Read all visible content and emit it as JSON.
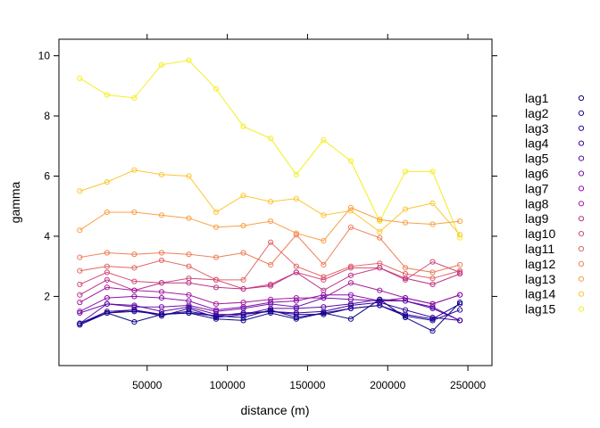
{
  "chart_data": {
    "type": "line",
    "xlabel": "distance (m)",
    "ylabel": "gamma",
    "xlim": [
      -5000,
      265000
    ],
    "ylim": [
      -0.3,
      10.55
    ],
    "xticks": [
      50000,
      100000,
      150000,
      200000,
      250000
    ],
    "yticks": [
      2,
      4,
      6,
      8,
      10
    ],
    "legend_position": "right",
    "x": [
      8000,
      25000,
      42000,
      59000,
      76000,
      93000,
      110000,
      127000,
      143000,
      160000,
      177000,
      195000,
      211000,
      228000,
      245000
    ],
    "series": [
      {
        "name": "lag1",
        "color": "#0d0887",
        "values": [
          1.05,
          1.45,
          1.15,
          1.4,
          1.45,
          1.25,
          1.2,
          1.45,
          1.25,
          1.45,
          1.25,
          1.9,
          1.3,
          0.85,
          1.8
        ]
      },
      {
        "name": "lag2",
        "color": "#1a0596",
        "values": [
          1.1,
          1.45,
          1.5,
          1.4,
          1.5,
          1.35,
          1.3,
          1.55,
          1.3,
          1.45,
          1.6,
          1.7,
          1.4,
          1.25,
          1.75
        ]
      },
      {
        "name": "lag3",
        "color": "#2a0593",
        "values": [
          1.1,
          1.45,
          1.55,
          1.35,
          1.6,
          1.3,
          1.4,
          1.5,
          1.4,
          1.4,
          1.6,
          1.7,
          1.35,
          1.2,
          1.55
        ]
      },
      {
        "name": "lag4",
        "color": "#3d049b",
        "values": [
          1.1,
          1.5,
          1.55,
          1.4,
          1.45,
          1.35,
          1.45,
          1.5,
          1.45,
          1.5,
          1.7,
          1.8,
          1.55,
          1.3,
          1.2
        ]
      },
      {
        "name": "lag5",
        "color": "#5a0ca5",
        "values": [
          1.1,
          1.75,
          1.7,
          1.5,
          1.65,
          1.4,
          1.4,
          1.6,
          1.6,
          1.65,
          1.75,
          1.9,
          1.85,
          1.6,
          1.2
        ]
      },
      {
        "name": "lag6",
        "color": "#7012ac",
        "values": [
          1.45,
          1.75,
          1.65,
          1.65,
          1.7,
          1.5,
          1.6,
          1.75,
          1.65,
          1.95,
          1.9,
          1.85,
          1.85,
          1.65,
          1.2
        ]
      },
      {
        "name": "lag7",
        "color": "#8b0fab",
        "values": [
          1.5,
          1.95,
          2.0,
          1.95,
          1.85,
          1.55,
          1.65,
          1.8,
          1.85,
          2.05,
          2.05,
          1.85,
          1.95,
          1.75,
          2.05
        ]
      },
      {
        "name": "lag8",
        "color": "#a51c9d",
        "values": [
          1.8,
          2.3,
          2.2,
          2.15,
          2.05,
          1.75,
          1.8,
          1.9,
          1.95,
          1.95,
          2.45,
          2.2,
          1.95,
          1.75,
          2.05
        ]
      },
      {
        "name": "lag9",
        "color": "#bd3489",
        "values": [
          2.05,
          2.55,
          2.2,
          2.45,
          2.45,
          2.3,
          2.25,
          2.35,
          2.8,
          2.2,
          2.7,
          2.95,
          2.6,
          2.4,
          2.75
        ]
      },
      {
        "name": "lag10",
        "color": "#d24b78",
        "values": [
          2.4,
          2.8,
          2.5,
          2.45,
          2.6,
          2.55,
          2.25,
          2.4,
          2.8,
          2.55,
          2.95,
          2.95,
          2.55,
          3.15,
          2.8
        ]
      },
      {
        "name": "lag11",
        "color": "#e26666",
        "values": [
          2.85,
          3.0,
          2.95,
          3.2,
          3.0,
          2.55,
          2.55,
          3.8,
          3.0,
          2.65,
          3.0,
          3.1,
          2.75,
          2.6,
          2.85
        ]
      },
      {
        "name": "lag12",
        "color": "#ee7f57",
        "values": [
          3.3,
          3.45,
          3.4,
          3.45,
          3.4,
          3.3,
          3.45,
          3.05,
          4.05,
          3.05,
          4.3,
          3.95,
          2.95,
          2.8,
          3.05
        ]
      },
      {
        "name": "lag13",
        "color": "#f9a045",
        "values": [
          4.2,
          4.8,
          4.8,
          4.7,
          4.6,
          4.3,
          4.35,
          4.5,
          4.1,
          3.85,
          4.95,
          4.55,
          4.45,
          4.4,
          4.5
        ]
      },
      {
        "name": "lag14",
        "color": "#fcc632",
        "values": [
          5.5,
          5.8,
          6.2,
          6.05,
          6.0,
          4.8,
          5.35,
          5.15,
          5.25,
          4.7,
          4.85,
          4.15,
          4.9,
          5.1,
          4.05
        ]
      },
      {
        "name": "lag15",
        "color": "#f4ee1f",
        "values": [
          9.25,
          8.7,
          8.6,
          9.7,
          9.85,
          8.9,
          7.65,
          7.25,
          6.05,
          7.2,
          6.5,
          4.5,
          6.15,
          6.15,
          3.95
        ]
      }
    ]
  }
}
